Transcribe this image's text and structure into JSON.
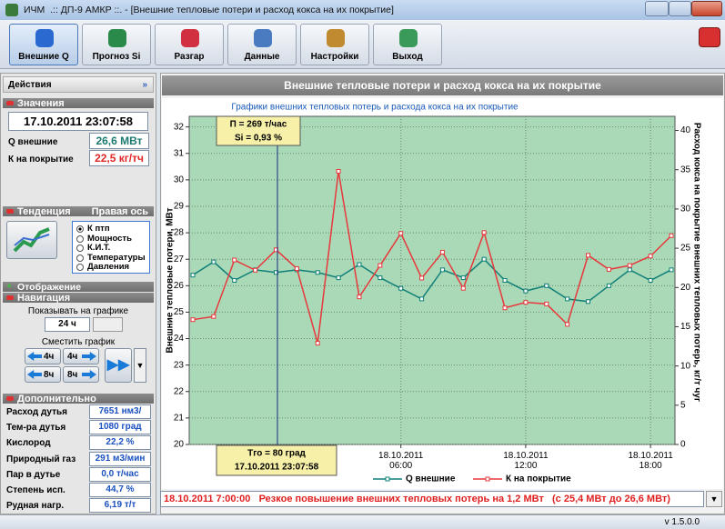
{
  "window": {
    "title": "ИЧМ  .:: ДП-9 АМКР ::. - [Внешние тепловые потери и расход кокса на их покрытие]",
    "version": "v 1.5.0.0"
  },
  "toolbar": [
    "Внешние Q",
    "Прогноз Si",
    "Разгар",
    "Данные",
    "Настройки",
    "Выход"
  ],
  "panel": {
    "actions": "Действия",
    "values_header": "Значения",
    "datetime": "17.10.2011 23:07:58",
    "readings": [
      {
        "label": "Q внешние",
        "value": "26,6 МВт"
      },
      {
        "label": "К на покрытие",
        "value": "22,5 кг/тч"
      }
    ],
    "trend_header": "Тенденция",
    "right_axis": "Правая ось",
    "options": [
      "К птп",
      "Мощность",
      "К.И.Т.",
      "Температуры",
      "Давления"
    ],
    "display": "Отображение",
    "navigation": "Навигация",
    "show_label": "Показывать на графике",
    "period": "24 ч",
    "shift_label": "Сместить график",
    "shift_buttons": [
      "4ч",
      "4ч",
      "8ч",
      "8ч"
    ],
    "extra_header": "Дополнительно",
    "extra": [
      [
        "Расход дутья",
        "7651 нм3/мин"
      ],
      [
        "Тем-ра дутья",
        "1080 град"
      ],
      [
        "Кислород",
        "22,2 %"
      ],
      [
        "Природный газ",
        "291 м3/мин"
      ],
      [
        "Пар в дутье",
        "0,0 т/час"
      ],
      [
        "Степень исп.",
        "44,7 %"
      ],
      [
        "Рудная нагр.",
        "6,19 т/т"
      ]
    ]
  },
  "main_header": "Внешние тепловые потери и расход кокса на их покрытие",
  "message": "18.10.2011 7:00:00   Резкое повышение внешних тепловых потерь на 1,2 МВт   (с 25,4 МВт до 26,6 МВт)",
  "chart_data": {
    "type": "line",
    "title": "Графики внешних тепловых потерь и расхода кокса на их покрытие",
    "ylabel": "Внешние тепловые потери, МВт",
    "y2label": "Расход кокса на покрытие внешних тепловых потерь, кг/т чуг",
    "categories": [
      null,
      null,
      null,
      null,
      null,
      null,
      null,
      null,
      null,
      null,
      "18.10.2011\n06:00",
      null,
      null,
      null,
      null,
      null,
      "18.10.2011\n12:00",
      null,
      null,
      null,
      null,
      null,
      "18.10.2011\n18:00",
      null
    ],
    "series": [
      {
        "name": "Q внешние",
        "color": "#0f7f78",
        "values": [
          26.4,
          26.9,
          26.2,
          26.6,
          26.5,
          26.6,
          26.5,
          26.3,
          26.8,
          26.3,
          25.9,
          25.5,
          26.6,
          26.3,
          27.0,
          26.2,
          25.8,
          26.0,
          25.5,
          25.4,
          26.0,
          26.6,
          26.2,
          26.6
        ]
      },
      {
        "name": "К на покрытие",
        "color": "#e8383c",
        "axis": "y2",
        "values": [
          15.9,
          16.3,
          23.5,
          22.2,
          24.8,
          22.4,
          12.9,
          34.8,
          18.8,
          22.8,
          26.9,
          21.2,
          24.5,
          19.9,
          27.0,
          17.4,
          18.1,
          17.9,
          15.3,
          24.1,
          22.3,
          22.8,
          24.0,
          26.6
        ]
      }
    ],
    "ylim": [
      20,
      32.4
    ],
    "yticks": [
      20,
      21,
      22,
      23,
      24,
      25,
      26,
      27,
      28,
      29,
      30,
      31,
      32
    ],
    "y2lim": [
      0,
      41.8
    ],
    "y2ticks": [
      0,
      5,
      10,
      15,
      20,
      25,
      30,
      35,
      40
    ],
    "grid": true,
    "annotations": [
      "П = 269 т/час",
      "Si = 0,93 %",
      "Тго = 80 град",
      "17.10.2011 23:07:58"
    ]
  }
}
